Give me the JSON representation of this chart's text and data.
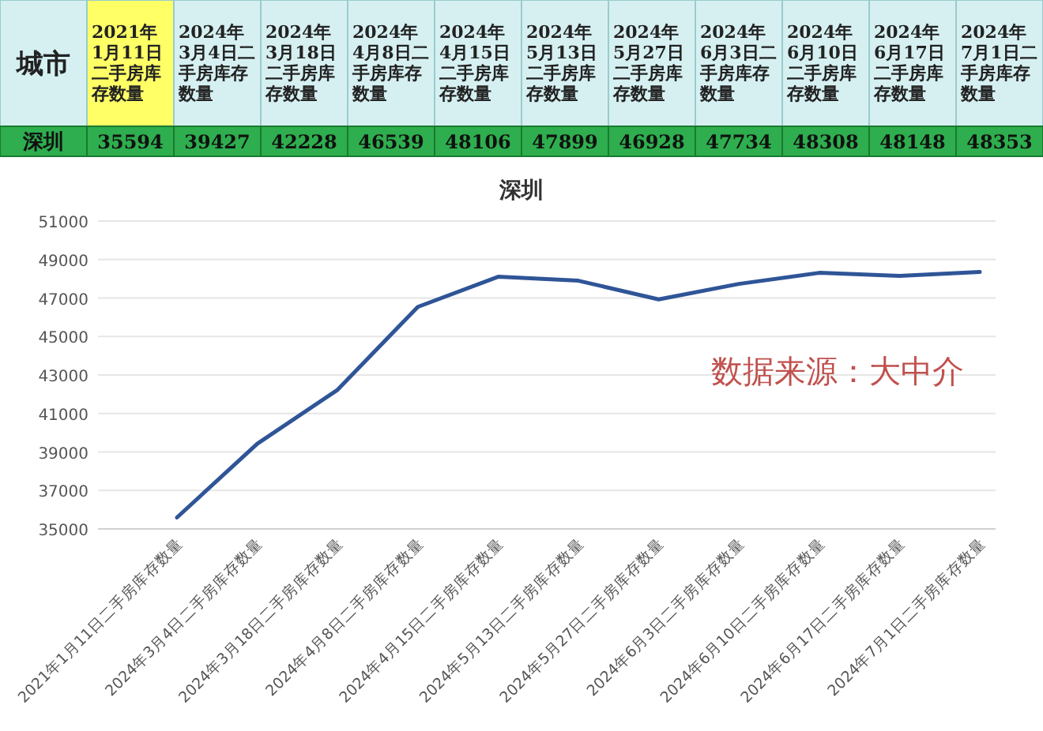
{
  "chart_data": [
    {
      "type": "other",
      "annotations": [
        "城市"
      ],
      "categories": [
        "2021年1月11日二手房库存数量",
        "2024年3月4日二手房库存数量",
        "2024年3月18日二手房库存数量",
        "2024年4月8日二手房库存数量",
        "2024年4月15日二手房库存数量",
        "2024年5月13日二手房库存数量",
        "2024年5月27日二手房库存数量",
        "2024年6月3日二手房库存数量",
        "2024年6月10日二手房库存数量",
        "2024年6月17日二手房库存数量",
        "2024年7月1日二手房库存数量"
      ],
      "series": [
        {
          "name": "深圳",
          "values": [
            35594,
            39427,
            42228,
            46539,
            48106,
            47899,
            46928,
            47734,
            48308,
            48148,
            48353
          ]
        }
      ],
      "data_labels": true
    },
    {
      "type": "line",
      "title": "深圳",
      "categories": [
        "2021年1月11日二手房库存数量",
        "2024年3月4日二手房库存数量",
        "2024年3月18日二手房库存数量",
        "2024年4月8日二手房库存数量",
        "2024年4月15日二手房库存数量",
        "2024年5月13日二手房库存数量",
        "2024年5月27日二手房库存数量",
        "2024年6月3日二手房库存数量",
        "2024年6月10日二手房库存数量",
        "2024年6月17日二手房库存数量",
        "2024年7月1日二手房库存数量"
      ],
      "series": [
        {
          "color": "#2f5597",
          "values": [
            35594,
            39427,
            42228,
            46539,
            48106,
            47899,
            46928,
            47734,
            48308,
            48148,
            48353
          ]
        }
      ],
      "ylim": [
        35000,
        51000
      ],
      "yticks": [
        35000,
        37000,
        39000,
        41000,
        43000,
        45000,
        47000,
        49000,
        51000
      ],
      "grid": "y",
      "marker": "none",
      "line_style": "solid",
      "annotations": [
        "数据来源：大中介"
      ]
    }
  ]
}
